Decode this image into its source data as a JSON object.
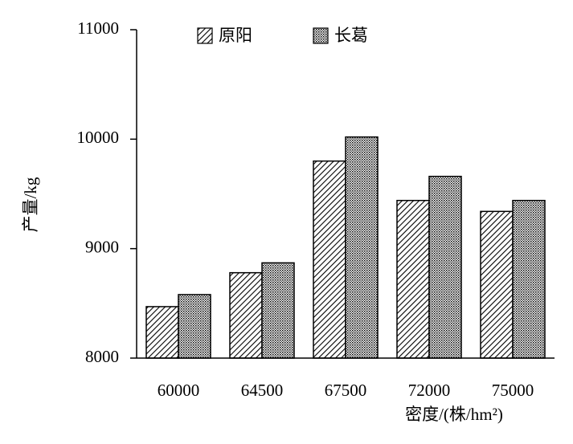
{
  "chart_data": {
    "type": "bar",
    "categories": [
      "60000",
      "64500",
      "67500",
      "72000",
      "75000"
    ],
    "series": [
      {
        "name": "原阳",
        "color": "#000000",
        "pattern": "diagonal",
        "values": [
          8470,
          8780,
          9800,
          9440,
          9340
        ]
      },
      {
        "name": "长葛",
        "color": "#000000",
        "pattern": "dots",
        "values": [
          8580,
          8870,
          10020,
          9660,
          9440
        ]
      }
    ],
    "ylim": [
      8000,
      11000
    ],
    "yticks": [
      8000,
      9000,
      10000,
      11000
    ],
    "ylabel": "产量/kg",
    "xlabel": "密度/(株/hm²)",
    "grid": false
  }
}
